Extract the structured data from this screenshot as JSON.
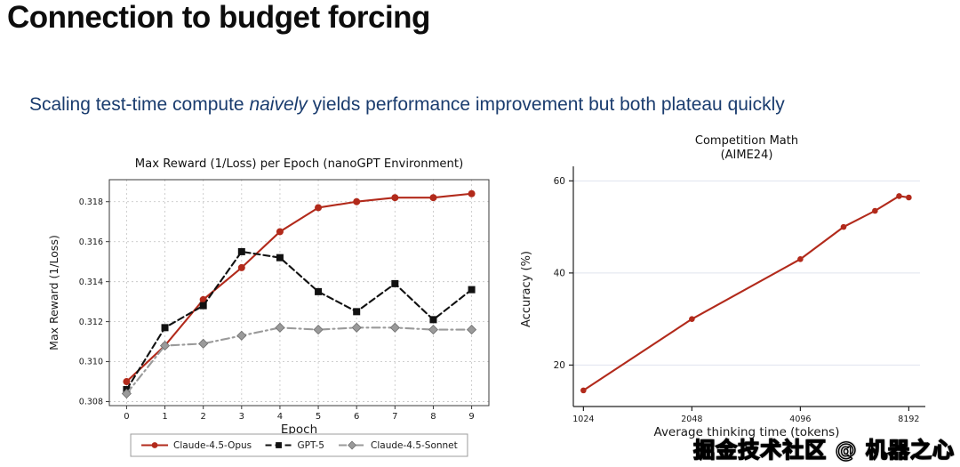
{
  "page": {
    "title": "Connection to budget forcing",
    "subtitle": {
      "pre": "Scaling test-time compute ",
      "italic": "naively",
      "post": " yields performance improvement but both plateau quickly"
    },
    "watermark": "掘金技术社区 @ 机器之心",
    "colors": {
      "title": "#0d0d0d",
      "subtitle": "#1a3c6e",
      "accent_red": "#b22a1b"
    }
  },
  "chart_data": [
    {
      "type": "line",
      "title": "Max Reward (1/Loss) per Epoch (nanoGPT Environment)",
      "xlabel": "Epoch",
      "ylabel": "Max Reward (1/Loss)",
      "x": [
        0,
        1,
        2,
        3,
        4,
        5,
        6,
        7,
        8,
        9
      ],
      "xlim": [
        -0.45,
        9.45
      ],
      "ylim": [
        0.3078,
        0.3191
      ],
      "yticks": [
        0.308,
        0.31,
        0.312,
        0.314,
        0.316,
        0.318
      ],
      "grid": true,
      "legend_position": "bottom",
      "series": [
        {
          "name": "Claude-4.5-Opus",
          "color": "#b22a1b",
          "linestyle": "solid",
          "marker": "circle",
          "values": [
            0.309,
            0.3108,
            0.3131,
            0.3147,
            0.3165,
            0.3177,
            0.318,
            0.3182,
            0.3182,
            0.3184
          ]
        },
        {
          "name": "GPT-5",
          "color": "#111111",
          "linestyle": "dashed",
          "marker": "square",
          "values": [
            0.3086,
            0.3117,
            0.3128,
            0.3155,
            0.3152,
            0.3135,
            0.3125,
            0.3139,
            0.3121,
            0.3136
          ]
        },
        {
          "name": "Claude-4.5-Sonnet",
          "color": "#9a9a9a",
          "linestyle": "dashdot",
          "marker": "diamond",
          "values": [
            0.3084,
            0.3108,
            0.3109,
            0.3113,
            0.3117,
            0.3116,
            0.3117,
            0.3117,
            0.3116,
            0.3116
          ]
        }
      ]
    },
    {
      "type": "line",
      "title_lines": [
        "Competition Math",
        "(AIME24)"
      ],
      "xlabel": "Average thinking time (tokens)",
      "ylabel": "Accuracy (%)",
      "xscale": "log2",
      "x": [
        1024,
        2048,
        4096,
        5400,
        6600,
        7700,
        8192
      ],
      "xticks": [
        1024,
        2048,
        4096,
        8192
      ],
      "xlim": [
        960,
        8800
      ],
      "ylim": [
        11,
        62
      ],
      "yticks": [
        20,
        40,
        60
      ],
      "grid": true,
      "series": [
        {
          "name": "AIME24 accuracy",
          "color": "#b22a1b",
          "linestyle": "solid",
          "marker": "circle",
          "values": [
            14.5,
            30,
            43,
            50,
            53.5,
            56.7,
            56.4
          ]
        }
      ]
    }
  ]
}
